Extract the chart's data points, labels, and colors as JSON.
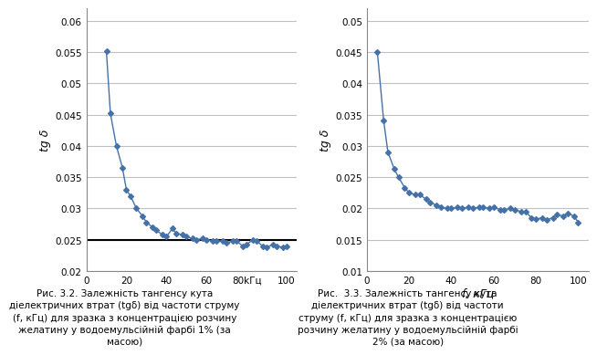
{
  "chart1": {
    "x": [
      10,
      12,
      15,
      18,
      20,
      22,
      25,
      28,
      30,
      33,
      35,
      38,
      40,
      43,
      45,
      48,
      50,
      53,
      55,
      58,
      60,
      63,
      65,
      68,
      70,
      73,
      75,
      78,
      80,
      83,
      85,
      88,
      90,
      93,
      95,
      98,
      100
    ],
    "y": [
      0.0552,
      0.0452,
      0.04,
      0.0365,
      0.033,
      0.032,
      0.03,
      0.0288,
      0.0278,
      0.027,
      0.0265,
      0.0258,
      0.0255,
      0.0268,
      0.026,
      0.0258,
      0.0255,
      0.0252,
      0.025,
      0.0252,
      0.025,
      0.0248,
      0.0248,
      0.0248,
      0.0245,
      0.0248,
      0.0248,
      0.024,
      0.0242,
      0.025,
      0.0248,
      0.024,
      0.0238,
      0.0242,
      0.024,
      0.0238,
      0.024
    ],
    "hline_y": 0.025,
    "ylabel": "tg δ",
    "ylim": [
      0.02,
      0.062
    ],
    "xlim": [
      0,
      105
    ],
    "yticks": [
      0.02,
      0.025,
      0.03,
      0.035,
      0.04,
      0.045,
      0.05,
      0.055,
      0.06
    ],
    "xticks": [
      0,
      20,
      40,
      60,
      80,
      100
    ],
    "xtick_labels": [
      "0",
      "20",
      "40",
      "60",
      "80",
      "100"
    ],
    "xlabel_special": "f, кГц",
    "xlabel_special_x": 80,
    "caption_line1": "Рис. 3.2. Залежність тангенсу кута",
    "caption_line2": "діелектричних втрат (tgδ) від частоти струму",
    "caption_line3": "(f, кГц) для зразка з концентрацією розчину",
    "caption_line4": "желатину у водоемульсійній фарбі 1% (за",
    "caption_line5": "масою)"
  },
  "chart2": {
    "x": [
      5,
      8,
      10,
      13,
      15,
      18,
      20,
      23,
      25,
      28,
      30,
      33,
      35,
      38,
      40,
      43,
      45,
      48,
      50,
      53,
      55,
      58,
      60,
      63,
      65,
      68,
      70,
      73,
      75,
      78,
      80,
      83,
      85,
      88,
      90,
      93,
      95,
      98,
      100
    ],
    "y": [
      0.045,
      0.034,
      0.029,
      0.0263,
      0.025,
      0.0233,
      0.0225,
      0.0222,
      0.0222,
      0.0215,
      0.021,
      0.0205,
      0.0202,
      0.02,
      0.02,
      0.0202,
      0.02,
      0.0202,
      0.02,
      0.0202,
      0.0202,
      0.02,
      0.0202,
      0.0198,
      0.0198,
      0.02,
      0.0198,
      0.0195,
      0.0195,
      0.0185,
      0.0183,
      0.0185,
      0.0182,
      0.0185,
      0.019,
      0.0188,
      0.0192,
      0.0188,
      0.0178
    ],
    "ylabel": "tg δ",
    "xlabel": "f, кГц",
    "ylim": [
      0.01,
      0.052
    ],
    "xlim": [
      0,
      105
    ],
    "yticks": [
      0.01,
      0.015,
      0.02,
      0.025,
      0.03,
      0.035,
      0.04,
      0.045,
      0.05
    ],
    "xticks": [
      0,
      20,
      40,
      60,
      80,
      100
    ],
    "caption_line1": "Рис.  3.3. Залежність тангенсу кута",
    "caption_line2": "діелектричних втрат (tgδ) від частоти",
    "caption_line3": "струму (f, кГц) для зразка з концентрацією",
    "caption_line4": "розчину желатину у водоемульсійній фарбі",
    "caption_line5": "2% (за масою)"
  },
  "line_color": "#4472a8",
  "marker": "D",
  "markersize": 3,
  "linewidth": 1.0,
  "bg_color": "#ffffff",
  "grid_color": "#c0c0c0",
  "axis_color": "#555555",
  "text_color": "#000000",
  "caption_fontsize": 7.5
}
